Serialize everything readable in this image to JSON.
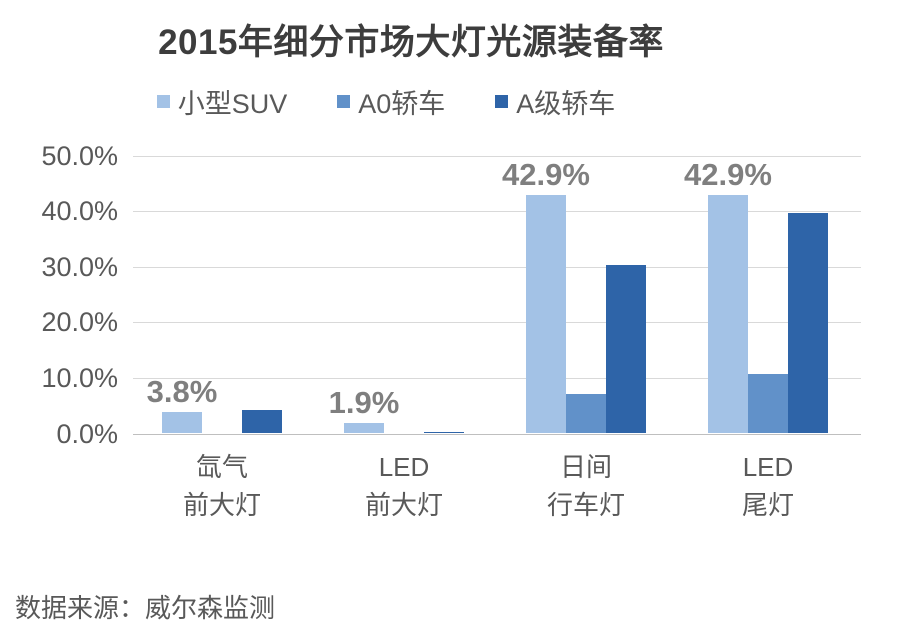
{
  "title": "2015年细分市场大灯光源装备率",
  "footer": "数据来源：威尔森监测",
  "colors": {
    "series_light": "#A3C2E6",
    "series_medium": "#6191C9",
    "series_dark": "#2E64A8",
    "gridline": "#d9d9d9",
    "axis_line": "#bfbfbf",
    "title_text": "#3d3d3d",
    "axis_text": "#595959",
    "value_label_text": "#7f7f7f"
  },
  "chart_data": {
    "type": "bar",
    "title": "2015年细分市场大灯光源装备率",
    "categories": [
      {
        "line1": "氙气",
        "line2": "前大灯"
      },
      {
        "line1": "LED",
        "line2": "前大灯"
      },
      {
        "line1": "日间",
        "line2": "行车灯"
      },
      {
        "line1": "LED",
        "line2": "尾灯"
      }
    ],
    "series": [
      {
        "name": "小型SUV",
        "color": "#A3C2E6",
        "values": [
          3.8,
          1.9,
          42.9,
          42.9
        ]
      },
      {
        "name": "A0轿车",
        "color": "#6191C9",
        "values": [
          0,
          0,
          7.1,
          10.7
        ]
      },
      {
        "name": "A级轿车",
        "color": "#2E64A8",
        "values": [
          4.2,
          0.3,
          30.3,
          39.6
        ]
      }
    ],
    "value_labels": [
      "3.8%",
      "1.9%",
      "42.9%",
      "42.9%"
    ],
    "y_ticks": [
      {
        "value": 50,
        "label": "50.0%"
      },
      {
        "value": 40,
        "label": "40.0%"
      },
      {
        "value": 30,
        "label": "30.0%"
      },
      {
        "value": 20,
        "label": "20.0%"
      },
      {
        "value": 10,
        "label": "10.0%"
      },
      {
        "value": 0,
        "label": "0.0%"
      }
    ],
    "ylim": [
      0,
      50
    ],
    "grid": true,
    "legend_position": "top",
    "xlabel": "",
    "ylabel": ""
  }
}
